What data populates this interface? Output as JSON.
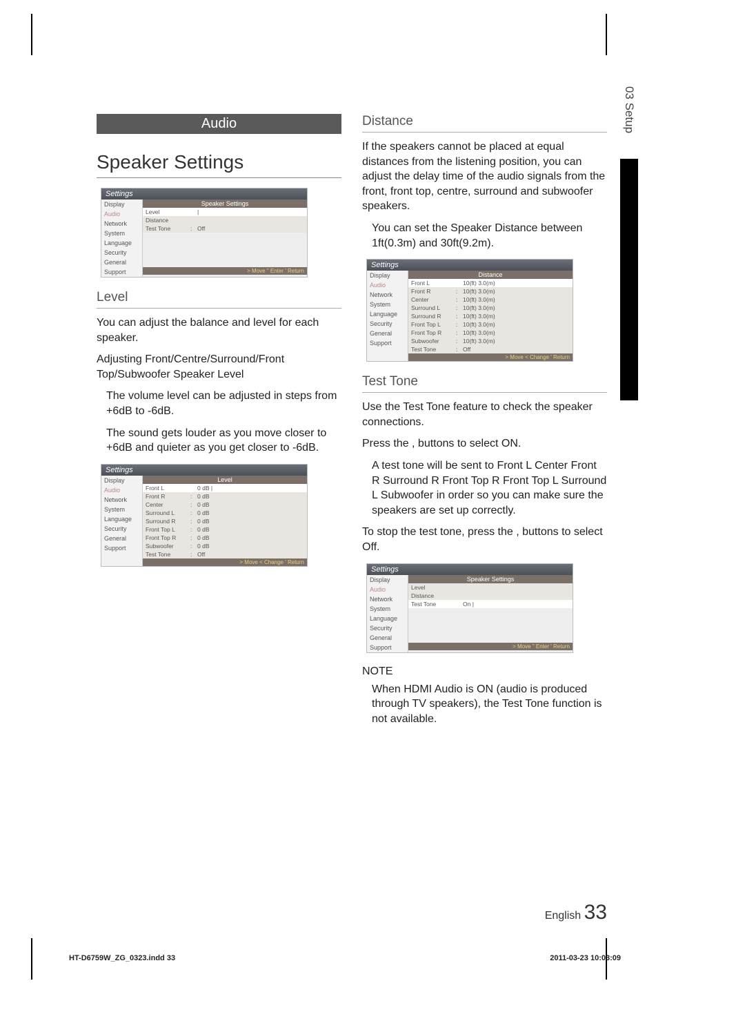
{
  "sideTab": "03  Setup",
  "audioBar": "Audio",
  "h1": "Speaker Settings",
  "level": {
    "heading": "Level",
    "p1": "You can adjust the balance and level for each speaker.",
    "p2": "Adjusting Front/Centre/Surround/Front Top/Subwoofer Speaker Level",
    "p3": "The volume level can be adjusted in steps from +6dB to -6dB.",
    "p4": "The sound gets louder as you move closer to +6dB and quieter as you get closer to -6dB."
  },
  "distance": {
    "heading": "Distance",
    "p1": "If the speakers cannot be placed at equal distances from the listening position, you can adjust the delay time of the audio signals from the front, front top, centre, surround and subwoofer speakers.",
    "p2": "You can set the Speaker Distance between 1ft(0.3m) and 30ft(9.2m)."
  },
  "testTone": {
    "heading": "Test Tone",
    "p1": "Use the Test Tone feature to check the speaker connections.",
    "p2": "Press the    ,      buttons to select ON.",
    "p3": "A test tone will be sent to Front L   Center   Front R   Surround R   Front Top R   Front Top L   Surround L   Subwoofer in order so you can make sure the speakers are set up correctly.",
    "p4": "To stop the test tone, press the    ,      buttons to select Off."
  },
  "note": {
    "heading": "NOTE",
    "p1": "When HDMI Audio is ON (audio is produced through TV speakers), the Test Tone function is not available."
  },
  "sidebar": [
    "Display",
    "Audio",
    "Network",
    "System",
    "Language",
    "Security",
    "General",
    "Support"
  ],
  "mini1": {
    "title": "Settings",
    "head": "Speaker Settings",
    "rows": [
      {
        "lab": "Level",
        "sep": "",
        "val": "|",
        "hl": true
      },
      {
        "lab": "Distance",
        "sep": "",
        "val": ""
      },
      {
        "lab": "Test Tone",
        "sep": ":",
        "val": "Off"
      }
    ],
    "foot": "> Move \"   Enter '   Return"
  },
  "mini2": {
    "title": "Settings",
    "head": "Level",
    "rows": [
      {
        "lab": "Front L",
        "sep": "",
        "val": "0 dB   |",
        "hl": true
      },
      {
        "lab": "Front R",
        "sep": ":",
        "val": "0 dB"
      },
      {
        "lab": "Center",
        "sep": ":",
        "val": "0 dB"
      },
      {
        "lab": "Surround L",
        "sep": ":",
        "val": "0 dB"
      },
      {
        "lab": "Surround R",
        "sep": ":",
        "val": "0 dB"
      },
      {
        "lab": "Front Top L",
        "sep": ":",
        "val": "0 dB"
      },
      {
        "lab": "Front Top R",
        "sep": ":",
        "val": "0 dB"
      },
      {
        "lab": "Subwoofer",
        "sep": ":",
        "val": "0 dB"
      },
      {
        "lab": "Test Tone",
        "sep": ":",
        "val": "Off"
      }
    ],
    "foot": "> Move <   Change '   Return"
  },
  "mini3": {
    "title": "Settings",
    "head": "Distance",
    "rows": [
      {
        "lab": "Front L",
        "sep": "",
        "val": "10(ft) 3.0(m)",
        "hl": true
      },
      {
        "lab": "Front R",
        "sep": ":",
        "val": "10(ft) 3.0(m)"
      },
      {
        "lab": "Center",
        "sep": ":",
        "val": "10(ft) 3.0(m)"
      },
      {
        "lab": "Surround L",
        "sep": ":",
        "val": "10(ft) 3.0(m)"
      },
      {
        "lab": "Surround R",
        "sep": ":",
        "val": "10(ft) 3.0(m)"
      },
      {
        "lab": "Front Top L",
        "sep": ":",
        "val": "10(ft) 3.0(m)"
      },
      {
        "lab": "Front Top R",
        "sep": ":",
        "val": "10(ft) 3.0(m)"
      },
      {
        "lab": "Subwoofer",
        "sep": ":",
        "val": "10(ft) 3.0(m)"
      },
      {
        "lab": "Test Tone",
        "sep": ":",
        "val": "Off"
      }
    ],
    "foot": "> Move <   Change '   Return"
  },
  "mini4": {
    "title": "Settings",
    "head": "Speaker Settings",
    "rows": [
      {
        "lab": "Level",
        "sep": "",
        "val": ""
      },
      {
        "lab": "Distance",
        "sep": "",
        "val": ""
      },
      {
        "lab": "Test Tone",
        "sep": "",
        "val": "On |",
        "hl": true
      }
    ],
    "foot": "> Move \"   Enter '   Return"
  },
  "pageFoot": {
    "lang": "English",
    "num": "33"
  },
  "docFoot": {
    "file": "HT-D6759W_ZG_0323.indd   33",
    "date": "2011-03-23   10:03:09"
  }
}
